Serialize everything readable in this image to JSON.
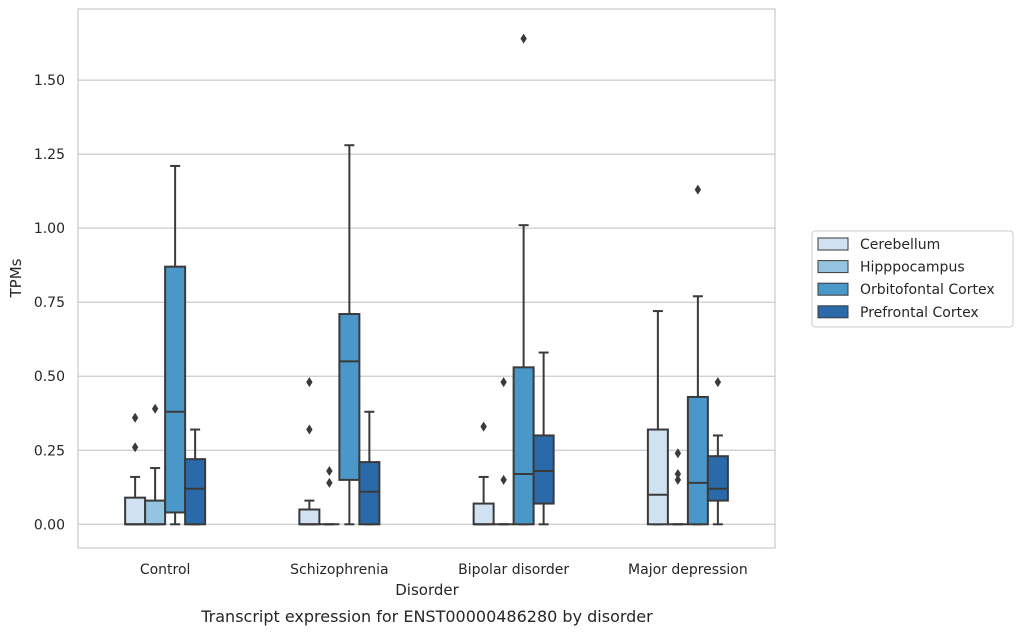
{
  "chart_data": {
    "type": "box",
    "title": "",
    "caption": "Transcript expression for ENST00000486280 by disorder",
    "xlabel": "Disorder",
    "ylabel": "TPMs",
    "ylim": [
      -0.08,
      1.74
    ],
    "yticks": [
      0.0,
      0.25,
      0.5,
      0.75,
      1.0,
      1.25,
      1.5
    ],
    "ytick_labels": [
      "0.00",
      "0.25",
      "0.50",
      "0.75",
      "1.00",
      "1.25",
      "1.50"
    ],
    "categories": [
      "Control",
      "Schizophrenia",
      "Bipolar disorder",
      "Major depression"
    ],
    "grid": "horizontal",
    "legend_position": "right",
    "series": [
      {
        "name": "Cerebellum",
        "color": "#d0e1f2",
        "boxes": [
          {
            "min": 0.0,
            "q1": 0.0,
            "median": 0.0,
            "q3": 0.09,
            "max": 0.16,
            "outliers": [
              0.26,
              0.36
            ]
          },
          {
            "min": 0.0,
            "q1": 0.0,
            "median": 0.0,
            "q3": 0.05,
            "max": 0.08,
            "outliers": [
              0.32,
              0.48
            ]
          },
          {
            "min": 0.0,
            "q1": 0.0,
            "median": 0.0,
            "q3": 0.07,
            "max": 0.16,
            "outliers": [
              0.33
            ]
          },
          {
            "min": 0.0,
            "q1": 0.0,
            "median": 0.1,
            "q3": 0.32,
            "max": 0.72,
            "outliers": []
          }
        ]
      },
      {
        "name": "Hipppocampus",
        "color": "#94c4df",
        "boxes": [
          {
            "min": 0.0,
            "q1": 0.0,
            "median": 0.0,
            "q3": 0.08,
            "max": 0.19,
            "outliers": [
              0.39
            ]
          },
          {
            "min": 0.0,
            "q1": 0.0,
            "median": 0.0,
            "q3": 0.0,
            "max": 0.0,
            "outliers": [
              0.14,
              0.18
            ]
          },
          {
            "min": 0.0,
            "q1": 0.0,
            "median": 0.0,
            "q3": 0.0,
            "max": 0.0,
            "outliers": [
              0.15,
              0.48
            ]
          },
          {
            "min": 0.0,
            "q1": 0.0,
            "median": 0.0,
            "q3": 0.0,
            "max": 0.0,
            "outliers": [
              0.15,
              0.17,
              0.24
            ]
          }
        ]
      },
      {
        "name": "Orbitofontal Cortex",
        "color": "#4a98c9",
        "boxes": [
          {
            "min": 0.0,
            "q1": 0.04,
            "median": 0.38,
            "q3": 0.87,
            "max": 1.21,
            "outliers": []
          },
          {
            "min": 0.0,
            "q1": 0.15,
            "median": 0.55,
            "q3": 0.71,
            "max": 1.28,
            "outliers": []
          },
          {
            "min": 0.0,
            "q1": 0.0,
            "median": 0.17,
            "q3": 0.53,
            "max": 1.01,
            "outliers": [
              1.64
            ]
          },
          {
            "min": 0.0,
            "q1": 0.0,
            "median": 0.14,
            "q3": 0.43,
            "max": 0.77,
            "outliers": [
              1.13
            ]
          }
        ]
      },
      {
        "name": "Prefrontal Cortex",
        "color": "#2a6aab",
        "boxes": [
          {
            "min": 0.0,
            "q1": 0.0,
            "median": 0.12,
            "q3": 0.22,
            "max": 0.32,
            "outliers": []
          },
          {
            "min": 0.0,
            "q1": 0.0,
            "median": 0.11,
            "q3": 0.21,
            "max": 0.38,
            "outliers": []
          },
          {
            "min": 0.0,
            "q1": 0.07,
            "median": 0.18,
            "q3": 0.3,
            "max": 0.58,
            "outliers": []
          },
          {
            "min": 0.0,
            "q1": 0.08,
            "median": 0.12,
            "q3": 0.23,
            "max": 0.3,
            "outliers": [
              0.48
            ]
          }
        ]
      }
    ]
  }
}
